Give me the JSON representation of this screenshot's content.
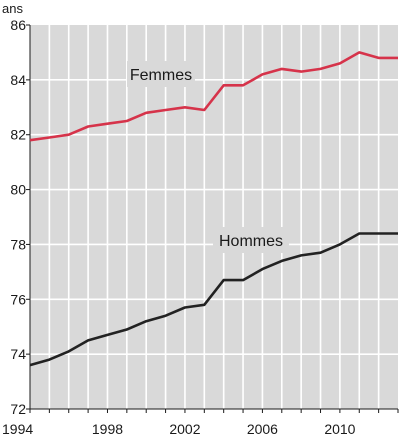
{
  "chart_data": {
    "type": "line",
    "title": "",
    "xlabel": "",
    "ylabel": "ans",
    "xlim": [
      1994,
      2013
    ],
    "ylim": [
      72,
      86
    ],
    "x_ticks": [
      "1994",
      "1998",
      "2002",
      "2006",
      "2010"
    ],
    "y_ticks": [
      "72",
      "74",
      "76",
      "78",
      "80",
      "82",
      "84",
      "86"
    ],
    "grid": true,
    "x": [
      1994,
      1995,
      1996,
      1997,
      1998,
      1999,
      2000,
      2001,
      2002,
      2003,
      2004,
      2005,
      2006,
      2007,
      2008,
      2009,
      2010,
      2011,
      2012
    ],
    "series": [
      {
        "name": "Femmes",
        "color": "#d6334a",
        "values": [
          81.8,
          81.9,
          82.0,
          82.3,
          82.4,
          82.5,
          82.8,
          82.9,
          83.0,
          82.9,
          83.8,
          83.8,
          84.2,
          84.4,
          84.3,
          84.4,
          84.6,
          85.0,
          84.8
        ]
      },
      {
        "name": "Hommes",
        "color": "#222222",
        "values": [
          73.6,
          73.8,
          74.1,
          74.5,
          74.7,
          74.9,
          75.2,
          75.4,
          75.7,
          75.8,
          76.7,
          76.7,
          77.1,
          77.4,
          77.6,
          77.7,
          78.0,
          78.4,
          78.4
        ]
      }
    ],
    "plot_background": "#d9d9d9",
    "grid_color": "#ffffff"
  }
}
